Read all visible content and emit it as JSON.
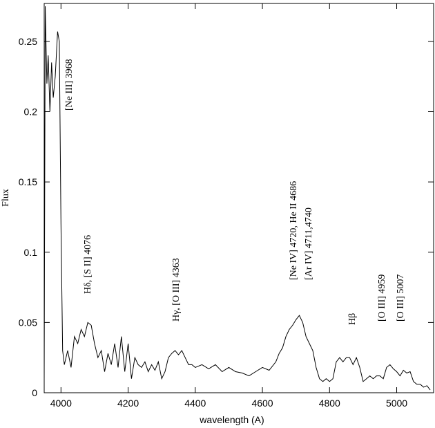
{
  "chart_data": {
    "type": "line",
    "x_label": "wavelength (A)",
    "y_label": "Flux",
    "annotations": [
      "[Ne III] 3968",
      "Hδ, [S II] 4076",
      "Hγ, [O III] 4363",
      "[Ne IV] 4720, He II 4686",
      "[Ar IV] 4711,4740",
      "Hβ",
      "[O III] 4959",
      "[O III] 5007"
    ],
    "xlim": [
      3950,
      5110
    ],
    "ylim": [
      0,
      0.277
    ],
    "xticks": [
      4000,
      4200,
      4400,
      4600,
      4800,
      5000
    ],
    "yticks": [
      0,
      0.05,
      0.1,
      0.15,
      0.2,
      0.25
    ],
    "color": "#000000",
    "x": [
      3950,
      3953,
      3958,
      3962,
      3967,
      3972,
      3977,
      3983,
      3990,
      3995,
      4000,
      4005,
      4010,
      4020,
      4030,
      4040,
      4050,
      4060,
      4070,
      4080,
      4090,
      4100,
      4110,
      4120,
      4130,
      4140,
      4150,
      4160,
      4170,
      4180,
      4190,
      4200,
      4210,
      4220,
      4230,
      4240,
      4250,
      4260,
      4270,
      4280,
      4290,
      4300,
      4310,
      4320,
      4330,
      4340,
      4350,
      4360,
      4370,
      4380,
      4390,
      4400,
      4420,
      4440,
      4460,
      4480,
      4500,
      4520,
      4540,
      4560,
      4580,
      4600,
      4620,
      4640,
      4650,
      4660,
      4670,
      4680,
      4690,
      4700,
      4710,
      4720,
      4730,
      4740,
      4750,
      4760,
      4770,
      4780,
      4790,
      4800,
      4810,
      4820,
      4830,
      4840,
      4850,
      4860,
      4870,
      4880,
      4890,
      4900,
      4910,
      4920,
      4930,
      4940,
      4950,
      4960,
      4970,
      4980,
      4990,
      5000,
      5010,
      5020,
      5030,
      5040,
      5050,
      5060,
      5070,
      5080,
      5090,
      5100
    ],
    "values": [
      0.01,
      0.275,
      0.22,
      0.24,
      0.2,
      0.235,
      0.21,
      0.225,
      0.257,
      0.25,
      0.12,
      0.03,
      0.02,
      0.03,
      0.018,
      0.04,
      0.035,
      0.045,
      0.04,
      0.05,
      0.048,
      0.035,
      0.025,
      0.03,
      0.015,
      0.028,
      0.02,
      0.035,
      0.018,
      0.04,
      0.015,
      0.035,
      0.01,
      0.025,
      0.02,
      0.018,
      0.022,
      0.015,
      0.02,
      0.016,
      0.022,
      0.01,
      0.015,
      0.025,
      0.028,
      0.03,
      0.027,
      0.03,
      0.025,
      0.02,
      0.02,
      0.018,
      0.02,
      0.017,
      0.02,
      0.015,
      0.018,
      0.015,
      0.014,
      0.012,
      0.015,
      0.018,
      0.016,
      0.022,
      0.028,
      0.032,
      0.04,
      0.045,
      0.048,
      0.052,
      0.055,
      0.05,
      0.04,
      0.035,
      0.03,
      0.018,
      0.01,
      0.008,
      0.01,
      0.008,
      0.01,
      0.022,
      0.025,
      0.022,
      0.025,
      0.025,
      0.02,
      0.025,
      0.018,
      0.008,
      0.01,
      0.012,
      0.01,
      0.012,
      0.012,
      0.01,
      0.018,
      0.02,
      0.017,
      0.015,
      0.012,
      0.016,
      0.014,
      0.015,
      0.008,
      0.006,
      0.006,
      0.004,
      0.005,
      0.002
    ]
  }
}
